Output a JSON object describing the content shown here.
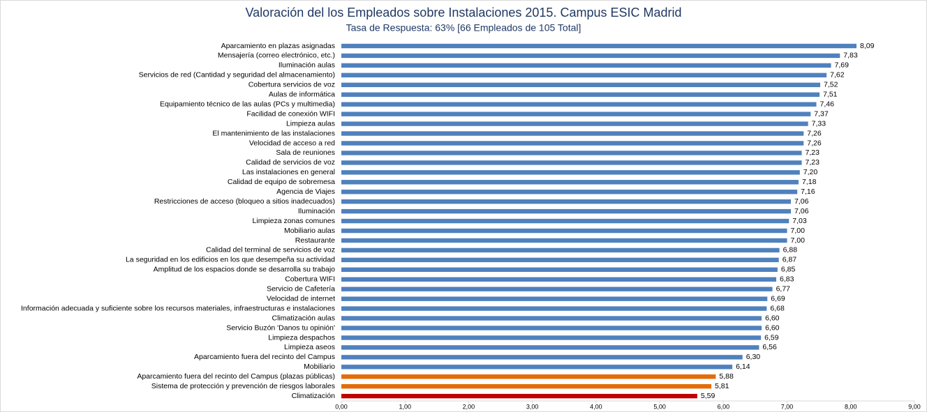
{
  "chart_data": {
    "type": "barh",
    "title": "Valoración del los Empleados sobre Instalaciones 2015. Campus ESIC Madrid",
    "subtitle": "Tasa de Respuesta: 63% [66 Empleados de 105 Total]",
    "categories": [
      "Aparcamiento en plazas asignadas",
      "Mensajería (correo electrónico, etc.)",
      "Iluminación aulas",
      "Servicios de red (Cantidad y seguridad del almacenamiento)",
      "Cobertura servicios de voz",
      "Aulas de informática",
      "Equipamiento técnico de las aulas (PCs y multimedia)",
      "Facilidad de conexión WIFI",
      "Limpieza aulas",
      "El mantenimiento de las instalaciones",
      "Velocidad de acceso a red",
      "Sala de reuniones",
      "Calidad de servicios de voz",
      "Las instalaciones en general",
      "Calidad de equipo de sobremesa",
      "Agencia de Viajes",
      "Restricciones de acceso (bloqueo a sitios inadecuados)",
      "Iluminación",
      "Limpieza zonas comunes",
      "Mobiliario aulas",
      "Restaurante",
      "Calidad del terminal de servicios de voz",
      "La seguridad en los edificios en los que desempeña su actividad",
      "Amplitud de los espacios donde se desarrolla su trabajo",
      "Cobertura WIFI",
      "Servicio de Cafetería",
      "Velocidad de internet",
      "Información adecuada y suficiente sobre los recursos materiales, infraestructuras e instalaciones",
      "Climatización aulas",
      "Servicio Buzón 'Danos tu opinión'",
      "Limpieza despachos",
      "Limpieza aseos",
      "Aparcamiento fuera del recinto del Campus",
      "Mobiliario",
      "Aparcamiento fuera del recinto del Campus (plazas públicas)",
      "Sistema de protección y prevención de riesgos laborales",
      "Climatización"
    ],
    "values": [
      8.09,
      7.83,
      7.69,
      7.62,
      7.52,
      7.51,
      7.46,
      7.37,
      7.33,
      7.26,
      7.26,
      7.23,
      7.23,
      7.2,
      7.18,
      7.16,
      7.06,
      7.06,
      7.03,
      7.0,
      7.0,
      6.88,
      6.87,
      6.85,
      6.83,
      6.77,
      6.69,
      6.68,
      6.6,
      6.6,
      6.59,
      6.56,
      6.3,
      6.14,
      5.88,
      5.81,
      5.59
    ],
    "value_labels": [
      "8,09",
      "7,83",
      "7,69",
      "7,62",
      "7,52",
      "7,51",
      "7,46",
      "7,37",
      "7,33",
      "7,26",
      "7,26",
      "7,23",
      "7,23",
      "7,20",
      "7,18",
      "7,16",
      "7,06",
      "7,06",
      "7,03",
      "7,00",
      "7,00",
      "6,88",
      "6,87",
      "6,85",
      "6,83",
      "6,77",
      "6,69",
      "6,68",
      "6,60",
      "6,60",
      "6,59",
      "6,56",
      "6,30",
      "6,14",
      "5,88",
      "5,81",
      "5,59"
    ],
    "colors": [
      "#4f81bd",
      "#4f81bd",
      "#4f81bd",
      "#4f81bd",
      "#4f81bd",
      "#4f81bd",
      "#4f81bd",
      "#4f81bd",
      "#4f81bd",
      "#4f81bd",
      "#4f81bd",
      "#4f81bd",
      "#4f81bd",
      "#4f81bd",
      "#4f81bd",
      "#4f81bd",
      "#4f81bd",
      "#4f81bd",
      "#4f81bd",
      "#4f81bd",
      "#4f81bd",
      "#4f81bd",
      "#4f81bd",
      "#4f81bd",
      "#4f81bd",
      "#4f81bd",
      "#4f81bd",
      "#4f81bd",
      "#4f81bd",
      "#4f81bd",
      "#4f81bd",
      "#4f81bd",
      "#4f81bd",
      "#4f81bd",
      "#e36c09",
      "#e36c09",
      "#c00000"
    ],
    "xlim": [
      0,
      9
    ],
    "xticks": [
      {
        "value": 0,
        "label": "0,00"
      },
      {
        "value": 1,
        "label": "1,00"
      },
      {
        "value": 2,
        "label": "2,00"
      },
      {
        "value": 3,
        "label": "3,00"
      },
      {
        "value": 4,
        "label": "4,00"
      },
      {
        "value": 5,
        "label": "5,00"
      },
      {
        "value": 6,
        "label": "6,00"
      },
      {
        "value": 7,
        "label": "7,00"
      },
      {
        "value": 8,
        "label": "8,00"
      },
      {
        "value": 9,
        "label": "9,00"
      }
    ],
    "grid": false
  }
}
